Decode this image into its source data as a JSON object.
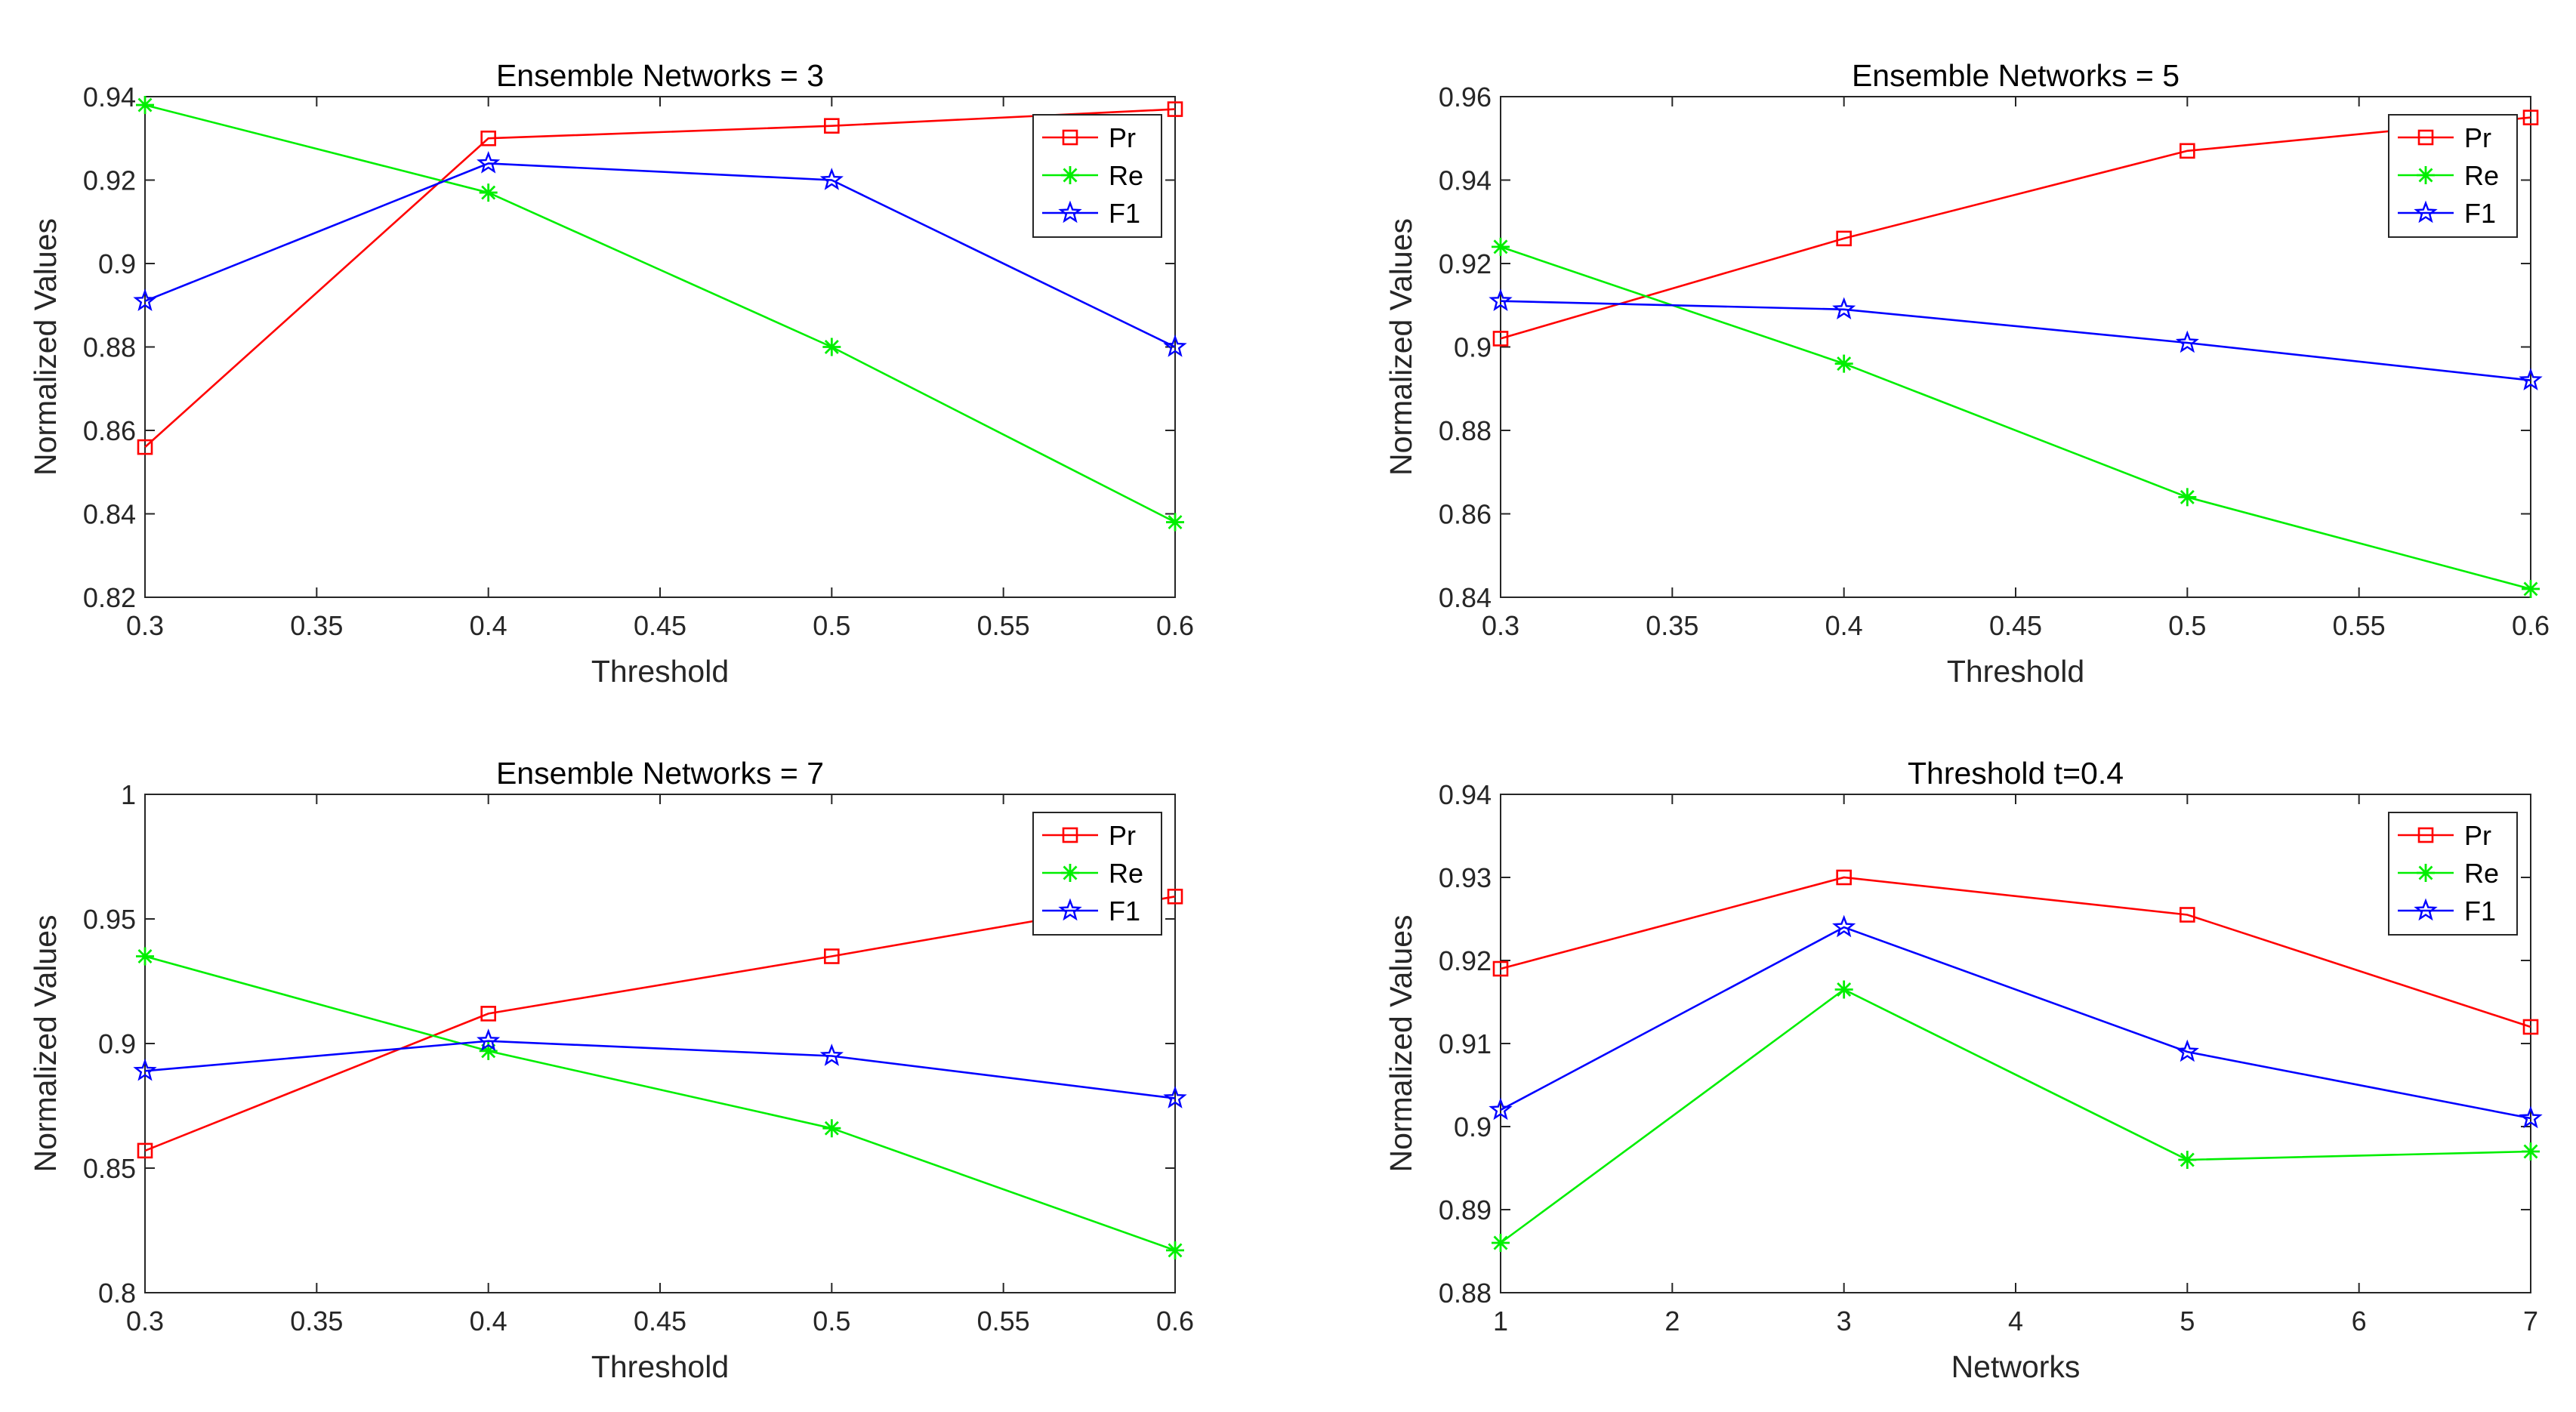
{
  "chart_data": [
    {
      "type": "line",
      "title": "Ensemble Networks = 3",
      "xlabel": "Threshold",
      "ylabel": "Normalized Values",
      "xlim": [
        0.3,
        0.6
      ],
      "ylim": [
        0.82,
        0.94
      ],
      "xticks": [
        0.3,
        0.35,
        0.4,
        0.45,
        0.5,
        0.55,
        0.6
      ],
      "xtick_labels": [
        "0.3",
        "0.35",
        "0.4",
        "0.45",
        "0.5",
        "0.55",
        "0.6"
      ],
      "yticks": [
        0.82,
        0.84,
        0.86,
        0.88,
        0.9,
        0.92,
        0.94
      ],
      "ytick_labels": [
        "0.82",
        "0.84",
        "0.86",
        "0.88",
        "0.9",
        "0.92",
        "0.94"
      ],
      "x": [
        0.3,
        0.4,
        0.5,
        0.6
      ],
      "legend_position": "top-right",
      "series": [
        {
          "name": "Pr",
          "color": "#ff0000",
          "marker": "square",
          "values": [
            0.856,
            0.93,
            0.933,
            0.937
          ]
        },
        {
          "name": "Re",
          "color": "#00ee00",
          "marker": "asterisk",
          "values": [
            0.938,
            0.917,
            0.88,
            0.838
          ]
        },
        {
          "name": "F1",
          "color": "#0000ff",
          "marker": "star",
          "values": [
            0.891,
            0.924,
            0.92,
            0.88
          ]
        }
      ]
    },
    {
      "type": "line",
      "title": "Ensemble Networks = 5",
      "xlabel": "Threshold",
      "ylabel": "Normalized Values",
      "xlim": [
        0.3,
        0.6
      ],
      "ylim": [
        0.84,
        0.96
      ],
      "xticks": [
        0.3,
        0.35,
        0.4,
        0.45,
        0.5,
        0.55,
        0.6
      ],
      "xtick_labels": [
        "0.3",
        "0.35",
        "0.4",
        "0.45",
        "0.5",
        "0.55",
        "0.6"
      ],
      "yticks": [
        0.84,
        0.86,
        0.88,
        0.9,
        0.92,
        0.94,
        0.96
      ],
      "ytick_labels": [
        "0.84",
        "0.86",
        "0.88",
        "0.9",
        "0.92",
        "0.94",
        "0.96"
      ],
      "x": [
        0.3,
        0.4,
        0.5,
        0.6
      ],
      "legend_position": "top-right",
      "series": [
        {
          "name": "Pr",
          "color": "#ff0000",
          "marker": "square",
          "values": [
            0.902,
            0.926,
            0.947,
            0.955
          ]
        },
        {
          "name": "Re",
          "color": "#00ee00",
          "marker": "asterisk",
          "values": [
            0.924,
            0.896,
            0.864,
            0.842
          ]
        },
        {
          "name": "F1",
          "color": "#0000ff",
          "marker": "star",
          "values": [
            0.911,
            0.909,
            0.901,
            0.892
          ]
        }
      ]
    },
    {
      "type": "line",
      "title": "Ensemble Networks = 7",
      "xlabel": "Threshold",
      "ylabel": "Normalized Values",
      "xlim": [
        0.3,
        0.6
      ],
      "ylim": [
        0.8,
        1.0
      ],
      "xticks": [
        0.3,
        0.35,
        0.4,
        0.45,
        0.5,
        0.55,
        0.6
      ],
      "xtick_labels": [
        "0.3",
        "0.35",
        "0.4",
        "0.45",
        "0.5",
        "0.55",
        "0.6"
      ],
      "yticks": [
        0.8,
        0.85,
        0.9,
        0.95,
        1.0
      ],
      "ytick_labels": [
        "0.8",
        "0.85",
        "0.9",
        "0.95",
        "1"
      ],
      "x": [
        0.3,
        0.4,
        0.5,
        0.6
      ],
      "legend_position": "top-right",
      "series": [
        {
          "name": "Pr",
          "color": "#ff0000",
          "marker": "square",
          "values": [
            0.857,
            0.912,
            0.935,
            0.959
          ]
        },
        {
          "name": "Re",
          "color": "#00ee00",
          "marker": "asterisk",
          "values": [
            0.935,
            0.897,
            0.866,
            0.817
          ]
        },
        {
          "name": "F1",
          "color": "#0000ff",
          "marker": "star",
          "values": [
            0.889,
            0.901,
            0.895,
            0.878
          ]
        }
      ]
    },
    {
      "type": "line",
      "title": "Threshold t=0.4",
      "xlabel": "Networks",
      "ylabel": "Normalized Values",
      "xlim": [
        1,
        7
      ],
      "ylim": [
        0.88,
        0.94
      ],
      "xticks": [
        1,
        2,
        3,
        4,
        5,
        6,
        7
      ],
      "xtick_labels": [
        "1",
        "2",
        "3",
        "4",
        "5",
        "6",
        "7"
      ],
      "yticks": [
        0.88,
        0.89,
        0.9,
        0.91,
        0.92,
        0.93,
        0.94
      ],
      "ytick_labels": [
        "0.88",
        "0.89",
        "0.9",
        "0.91",
        "0.92",
        "0.93",
        "0.94"
      ],
      "x": [
        1,
        3,
        5,
        7
      ],
      "legend_position": "top-right",
      "series": [
        {
          "name": "Pr",
          "color": "#ff0000",
          "marker": "square",
          "values": [
            0.919,
            0.93,
            0.9255,
            0.912
          ]
        },
        {
          "name": "Re",
          "color": "#00ee00",
          "marker": "asterisk",
          "values": [
            0.886,
            0.9165,
            0.896,
            0.897
          ]
        },
        {
          "name": "F1",
          "color": "#0000ff",
          "marker": "star",
          "values": [
            0.902,
            0.924,
            0.909,
            0.901
          ]
        }
      ]
    }
  ]
}
